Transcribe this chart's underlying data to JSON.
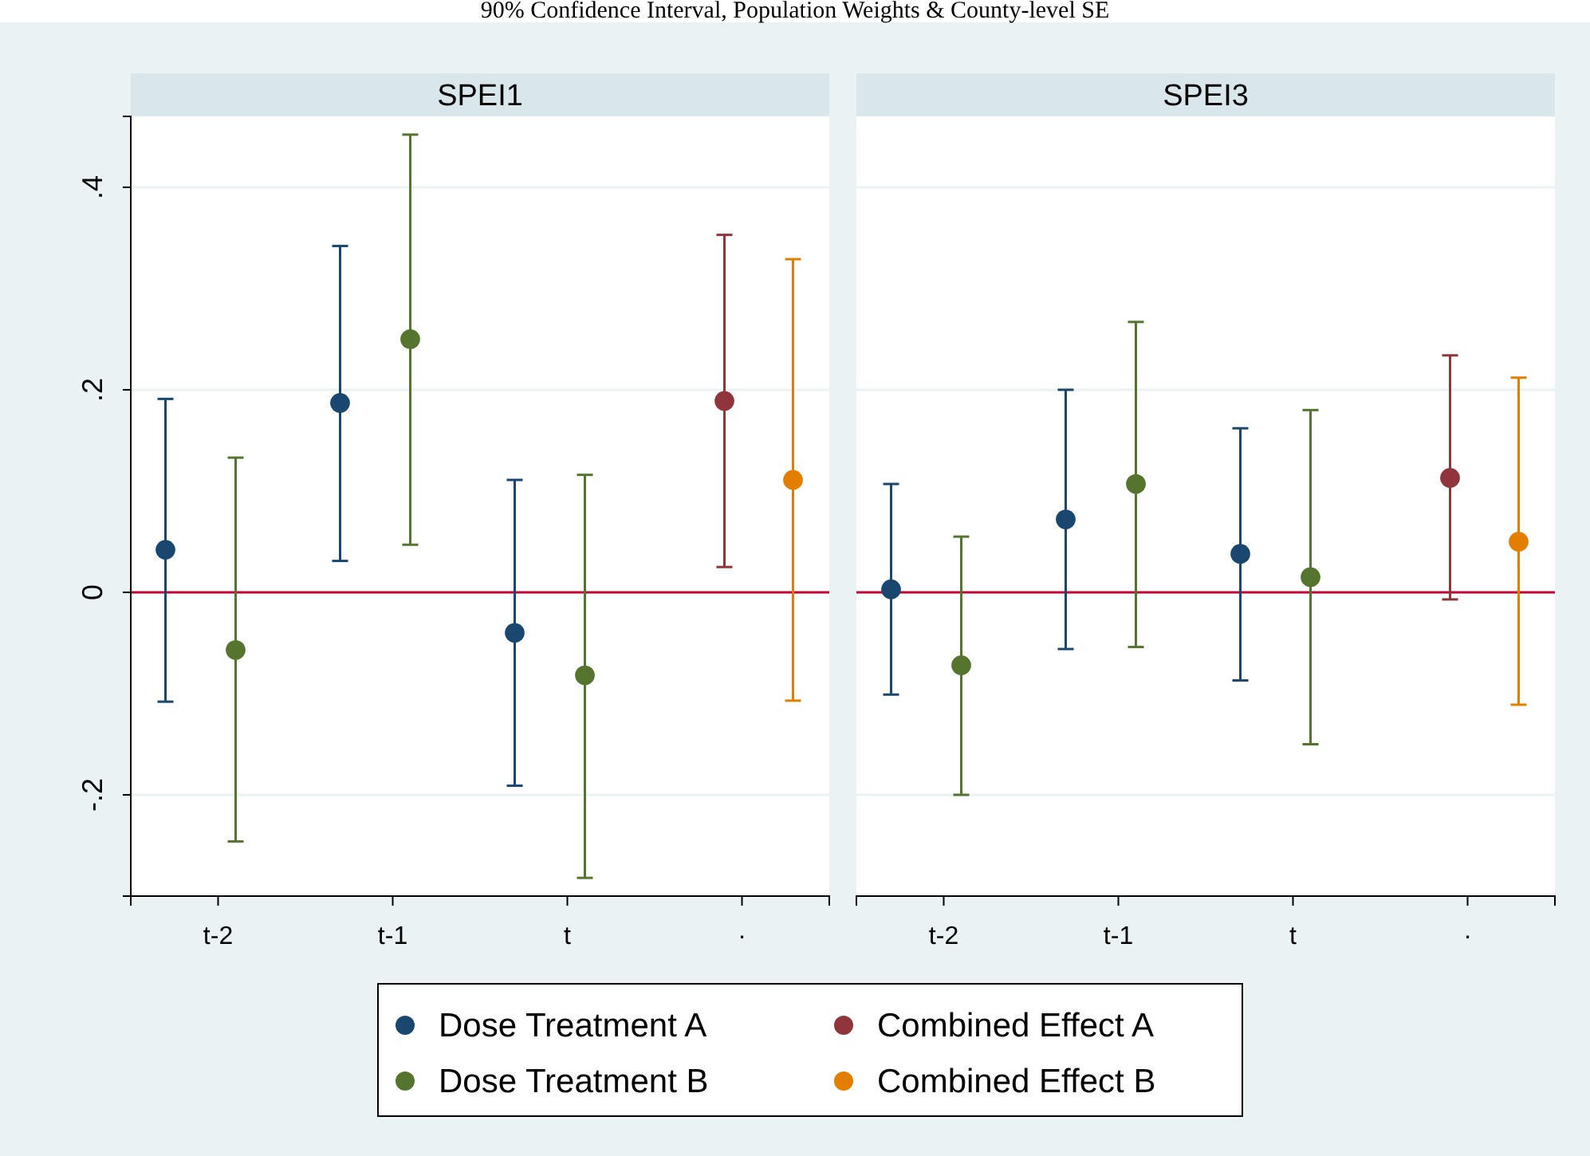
{
  "chart_data": [
    {
      "type": "scatter",
      "title": "SPEI1",
      "annotations": [
        "90% Confidence Interval, Population Weights & County-level SE"
      ],
      "categories": [
        "t-2",
        "t-1",
        "t",
        "·"
      ],
      "ylim": [
        -0.3,
        0.47
      ],
      "yticks": [
        {
          "value": -0.2,
          "label": "-.2"
        },
        0,
        {
          "value": 0.2,
          "label": ".2"
        },
        {
          "value": 0.4,
          "label": ".4"
        }
      ],
      "grid": "y",
      "legend": "bottom",
      "marker": "circle",
      "ref_lines": [
        {
          "axis": "y",
          "value": 0,
          "color": "#c10534"
        }
      ],
      "series": [
        {
          "name": "Dose Treatment A",
          "color": "#1a476f",
          "values": [
            0.042,
            0.187,
            -0.04,
            null
          ],
          "errors": [
            [
              -0.108,
              0.191
            ],
            [
              0.031,
              0.342
            ],
            [
              -0.191,
              0.111
            ],
            null
          ]
        },
        {
          "name": "Dose Treatment B",
          "color": "#55752f",
          "values": [
            -0.057,
            0.25,
            -0.082,
            null
          ],
          "errors": [
            [
              -0.246,
              0.133
            ],
            [
              0.047,
              0.452
            ],
            [
              -0.282,
              0.116
            ],
            null
          ]
        },
        {
          "name": "Combined Effect A",
          "color": "#90353b",
          "values": [
            null,
            null,
            null,
            0.189
          ],
          "errors": [
            null,
            null,
            null,
            [
              0.025,
              0.353
            ]
          ]
        },
        {
          "name": "Combined Effect B",
          "color": "#e37e00",
          "values": [
            null,
            null,
            null,
            0.111
          ],
          "errors": [
            null,
            null,
            null,
            [
              -0.107,
              0.329
            ]
          ]
        }
      ]
    },
    {
      "type": "scatter",
      "title": "SPEI3",
      "categories": [
        "t-2",
        "t-1",
        "t",
        "·"
      ],
      "ylim": [
        -0.3,
        0.47
      ],
      "yticks": [
        -0.2,
        0,
        0.2,
        0.4
      ],
      "tick_labels": "x",
      "grid": "y",
      "legend": "bottom",
      "marker": "circle",
      "ref_lines": [
        {
          "axis": "y",
          "value": 0,
          "color": "#c10534"
        }
      ],
      "series": [
        {
          "name": "Dose Treatment A",
          "color": "#1a476f",
          "values": [
            0.003,
            0.072,
            0.038,
            null
          ],
          "errors": [
            [
              -0.101,
              0.107
            ],
            [
              -0.056,
              0.2
            ],
            [
              -0.087,
              0.162
            ],
            null
          ]
        },
        {
          "name": "Dose Treatment B",
          "color": "#55752f",
          "values": [
            -0.072,
            0.107,
            0.015,
            null
          ],
          "errors": [
            [
              -0.2,
              0.055
            ],
            [
              -0.054,
              0.267
            ],
            [
              -0.15,
              0.18
            ],
            null
          ]
        },
        {
          "name": "Combined Effect A",
          "color": "#90353b",
          "values": [
            null,
            null,
            null,
            0.113
          ],
          "errors": [
            null,
            null,
            null,
            [
              -0.007,
              0.234
            ]
          ]
        },
        {
          "name": "Combined Effect B",
          "color": "#e37e00",
          "values": [
            null,
            null,
            null,
            0.05
          ],
          "errors": [
            null,
            null,
            null,
            [
              -0.111,
              0.212
            ]
          ]
        }
      ]
    }
  ]
}
